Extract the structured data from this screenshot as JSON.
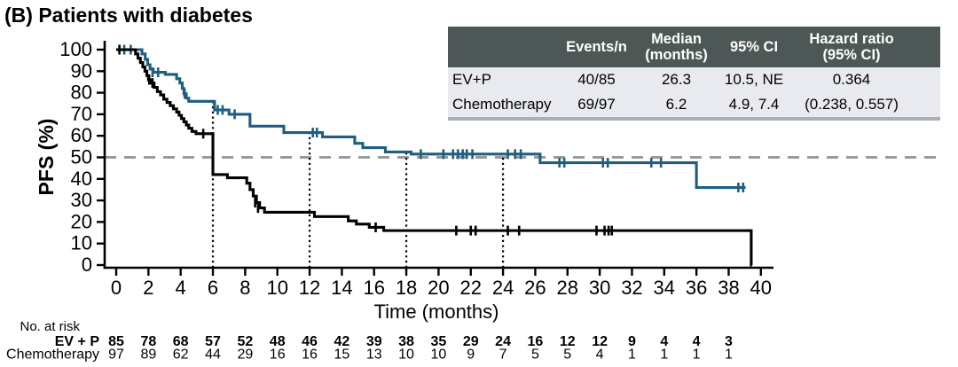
{
  "title": "(B) Patients with diabetes",
  "colors": {
    "ev_p_curve": "#1e5f80",
    "chemo_curve": "#000000",
    "risk_blue": "#1e6690",
    "risk_black": "#000000",
    "table_header_bg": "#4d5756",
    "table_row_bg": "#e9eaef",
    "reference_line": "#9a9a9a",
    "landmark_line": "#000000"
  },
  "stats_table": {
    "headers": [
      "",
      "Events/n",
      "Median\n(months)",
      "95% CI",
      "Hazard ratio\n(95% CI)"
    ],
    "rows": [
      {
        "label": "EV+P",
        "events_n": "40/85",
        "median": "26.3",
        "ci": "10.5, NE",
        "hr": "0.364"
      },
      {
        "label": "Chemotherapy",
        "events_n": "69/97",
        "median": "6.2",
        "ci": "4.9, 7.4",
        "hr": "(0.238, 0.557)"
      }
    ]
  },
  "chart_data": {
    "type": "line",
    "subtype": "kaplan-meier-step",
    "title": "(B) Patients with diabetes",
    "xlabel": "Time (months)",
    "ylabel": "PFS (%)",
    "xlim": [
      0,
      40
    ],
    "ylim": [
      0,
      100
    ],
    "xticks": [
      0,
      2,
      4,
      6,
      8,
      10,
      12,
      14,
      16,
      18,
      20,
      22,
      24,
      26,
      28,
      30,
      32,
      34,
      36,
      38,
      40
    ],
    "yticks": [
      0,
      10,
      20,
      30,
      40,
      50,
      60,
      70,
      80,
      90,
      100
    ],
    "grid": false,
    "reference_line_y": 50,
    "landmark_lines": [
      {
        "x": 6,
        "top": 76
      },
      {
        "x": 12,
        "top": 61.5
      },
      {
        "x": 18,
        "top": 52.5
      },
      {
        "x": 24,
        "top": 51.5
      }
    ],
    "series": [
      {
        "name": "EV+P",
        "key": "ev-p",
        "color": "#1e5f80",
        "end": 39.05,
        "steps": [
          [
            0,
            100
          ],
          [
            1.6,
            98
          ],
          [
            1.8,
            95.5
          ],
          [
            1.95,
            93
          ],
          [
            2.1,
            91
          ],
          [
            2.3,
            89.5
          ],
          [
            3.05,
            88.5
          ],
          [
            3.75,
            86.5
          ],
          [
            3.95,
            84.5
          ],
          [
            4.1,
            82
          ],
          [
            4.2,
            79.5
          ],
          [
            4.35,
            77.5
          ],
          [
            4.5,
            76
          ],
          [
            6.1,
            72
          ],
          [
            7.0,
            70
          ],
          [
            8.3,
            64.5
          ],
          [
            10.4,
            61.5
          ],
          [
            12.8,
            59.5
          ],
          [
            14.8,
            56.5
          ],
          [
            15.3,
            54.5
          ],
          [
            16.7,
            52.5
          ],
          [
            18.3,
            51.5
          ],
          [
            26.3,
            47.5
          ],
          [
            36.0,
            36
          ]
        ],
        "censors": [
          [
            0.5,
            100
          ],
          [
            0.9,
            100
          ],
          [
            2.25,
            89.5
          ],
          [
            2.6,
            89.5
          ],
          [
            4.25,
            79.5
          ],
          [
            6.3,
            72
          ],
          [
            6.6,
            72
          ],
          [
            7.35,
            70
          ],
          [
            12.2,
            61.5
          ],
          [
            12.45,
            61.5
          ],
          [
            18.9,
            51.5
          ],
          [
            20.3,
            51.5
          ],
          [
            20.9,
            51.5
          ],
          [
            21.2,
            51.5
          ],
          [
            21.5,
            51.5
          ],
          [
            21.75,
            51.5
          ],
          [
            22.1,
            51.5
          ],
          [
            24.3,
            51.5
          ],
          [
            24.75,
            51.5
          ],
          [
            25.1,
            51.5
          ],
          [
            27.5,
            47.5
          ],
          [
            27.8,
            47.5
          ],
          [
            30.2,
            47.5
          ],
          [
            30.5,
            47.5
          ],
          [
            33.2,
            47.5
          ],
          [
            33.8,
            47.5
          ],
          [
            38.6,
            36
          ],
          [
            38.9,
            36
          ]
        ]
      },
      {
        "name": "Chemotherapy",
        "key": "chemotherapy",
        "color": "#000000",
        "end": 39.45,
        "steps": [
          [
            0,
            100
          ],
          [
            1.2,
            98
          ],
          [
            1.35,
            96
          ],
          [
            1.5,
            94
          ],
          [
            1.65,
            92
          ],
          [
            1.78,
            90
          ],
          [
            1.9,
            88
          ],
          [
            2.0,
            86
          ],
          [
            2.15,
            84.5
          ],
          [
            2.35,
            82.5
          ],
          [
            2.55,
            80.5
          ],
          [
            2.75,
            79
          ],
          [
            2.95,
            77
          ],
          [
            3.15,
            75.5
          ],
          [
            3.35,
            74
          ],
          [
            3.55,
            72.5
          ],
          [
            3.75,
            71
          ],
          [
            3.9,
            69.5
          ],
          [
            4.05,
            68
          ],
          [
            4.2,
            66.5
          ],
          [
            4.35,
            65
          ],
          [
            4.5,
            63.5
          ],
          [
            4.7,
            62
          ],
          [
            4.95,
            61
          ],
          [
            6.0,
            42
          ],
          [
            6.9,
            40.5
          ],
          [
            8.1,
            38
          ],
          [
            8.3,
            35
          ],
          [
            8.5,
            32
          ],
          [
            8.7,
            29
          ],
          [
            8.9,
            26.5
          ],
          [
            9.2,
            24.5
          ],
          [
            12.3,
            22.5
          ],
          [
            14.4,
            20.5
          ],
          [
            14.9,
            19
          ],
          [
            15.7,
            17.5
          ],
          [
            16.6,
            16
          ],
          [
            39.4,
            0
          ]
        ],
        "censors": [
          [
            0.2,
            100
          ],
          [
            2.05,
            86
          ],
          [
            2.25,
            84.5
          ],
          [
            5.4,
            61
          ],
          [
            8.62,
            29
          ],
          [
            8.8,
            26.5
          ],
          [
            16.1,
            17.5
          ],
          [
            21.1,
            16
          ],
          [
            22.0,
            16
          ],
          [
            22.3,
            16
          ],
          [
            24.3,
            16
          ],
          [
            25.0,
            16
          ],
          [
            29.8,
            16
          ],
          [
            30.3,
            16
          ],
          [
            30.55,
            16
          ],
          [
            30.75,
            16
          ]
        ]
      }
    ]
  },
  "risk_table": {
    "heading": "No. at risk",
    "times": [
      0,
      2,
      4,
      6,
      8,
      10,
      12,
      14,
      16,
      18,
      20,
      22,
      24,
      26,
      28,
      30,
      32,
      34,
      36,
      38
    ],
    "rows": [
      {
        "label": "EV + P",
        "color": "#1e6690",
        "bold": true,
        "values": [
          85,
          78,
          68,
          57,
          52,
          48,
          46,
          42,
          39,
          38,
          35,
          29,
          24,
          16,
          12,
          12,
          9,
          4,
          4,
          3
        ]
      },
      {
        "label": "Chemotherapy",
        "color": "#000000",
        "bold": false,
        "values": [
          97,
          89,
          62,
          44,
          29,
          16,
          16,
          15,
          13,
          10,
          10,
          9,
          7,
          5,
          5,
          4,
          1,
          1,
          1,
          1
        ]
      }
    ]
  }
}
